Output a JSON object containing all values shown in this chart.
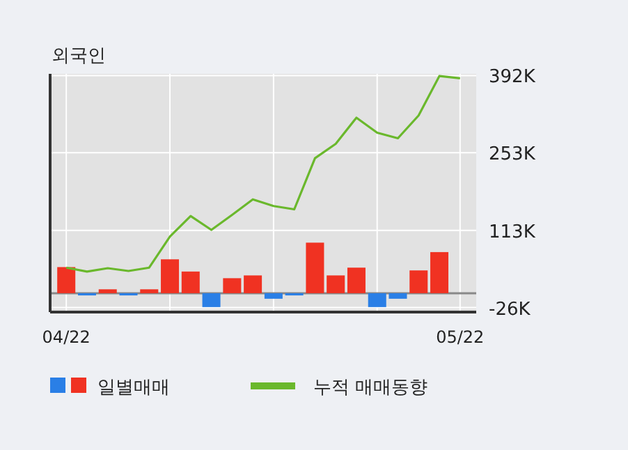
{
  "chart_data": {
    "type": "bar",
    "title": "외국인",
    "categories": [
      "04/22",
      null,
      null,
      null,
      null,
      null,
      null,
      null,
      null,
      null,
      null,
      null,
      null,
      null,
      null,
      null,
      null,
      null,
      null,
      "05/22"
    ],
    "series": [
      {
        "name": "일별매매",
        "colors": [
          "#f03222",
          "#2a7fe6",
          "#f03222",
          "#2a7fe6",
          "#f03222",
          "#f03222",
          "#f03222",
          "#2a7fe6",
          "#f03222",
          "#f03222",
          "#2a7fe6",
          "#2a7fe6",
          "#f03222",
          "#f03222",
          "#f03222",
          "#2a7fe6",
          "#2a7fe6",
          "#f03222",
          "#f03222",
          "#f03222"
        ],
        "values": [
          47,
          -4,
          7,
          -4,
          7,
          61,
          39,
          -25,
          27,
          32,
          -10,
          -4,
          91,
          32,
          46,
          -25,
          -10,
          41,
          74,
          null
        ]
      },
      {
        "name": "누적 매매동향",
        "type": "line",
        "color": "#6ab82c",
        "values": [
          46,
          39,
          45,
          40,
          46,
          102,
          139,
          114,
          141,
          169,
          157,
          151,
          243,
          269,
          316,
          289,
          279,
          320,
          391,
          387
        ]
      }
    ],
    "ylim": [
      -34,
      395
    ],
    "yticks": [
      {
        "value": 392,
        "label": "392K"
      },
      {
        "value": 253,
        "label": "253K"
      },
      {
        "value": 113,
        "label": "113K"
      },
      {
        "value": -26,
        "label": "-26K"
      }
    ],
    "ref_lines": [
      {
        "axis": "y",
        "value": 0,
        "color": "#888888"
      }
    ],
    "grid": true,
    "legend": "bottom"
  }
}
